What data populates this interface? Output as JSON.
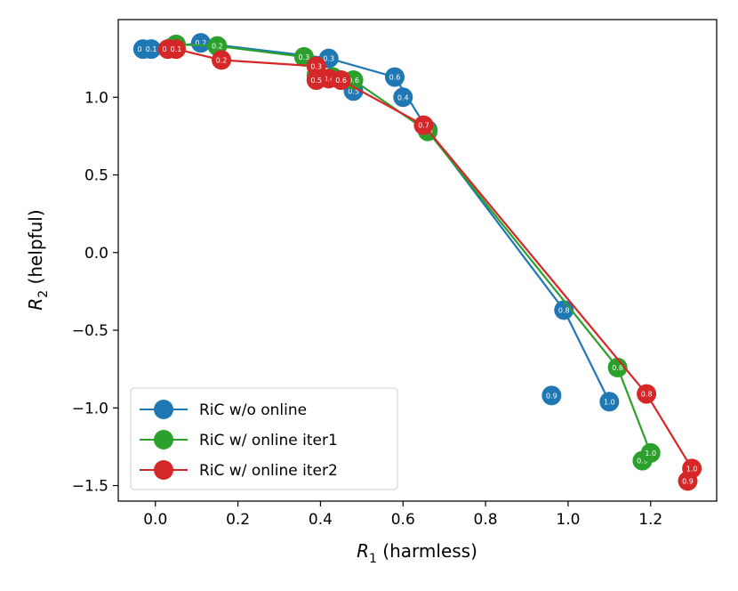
{
  "chart_data": {
    "type": "line",
    "xlabel": {
      "var": "R",
      "sub": "1",
      "rest": " (harmless)"
    },
    "ylabel": {
      "var": "R",
      "sub": "2",
      "rest": " (helpful)"
    },
    "xlim": [
      -0.09,
      1.36
    ],
    "ylim": [
      -1.6,
      1.5
    ],
    "xticks": [
      0.0,
      0.2,
      0.4,
      0.6,
      0.8,
      1.0,
      1.2
    ],
    "yticks": [
      -1.5,
      -1.0,
      -0.5,
      0.0,
      0.5,
      1.0
    ],
    "xtick_labels": [
      "0.0",
      "0.2",
      "0.4",
      "0.6",
      "0.8",
      "1.0",
      "1.2"
    ],
    "ytick_labels": [
      "−1.5",
      "−1.0",
      "−0.5",
      "0.0",
      "0.5",
      "1.0"
    ],
    "grid": false,
    "legend_position": "lower-left",
    "series": [
      {
        "name": "RiC w/o online",
        "color": "#1f77b4",
        "line": [
          [
            -0.03,
            1.31
          ],
          [
            -0.01,
            1.31
          ],
          [
            0.11,
            1.35
          ],
          [
            0.36,
            1.27
          ],
          [
            0.42,
            1.25
          ],
          [
            0.58,
            1.13
          ],
          [
            0.66,
            0.79
          ],
          [
            0.99,
            -0.37
          ],
          [
            1.1,
            -0.96
          ]
        ],
        "points": [
          {
            "x": -0.03,
            "y": 1.31,
            "label": "0.0"
          },
          {
            "x": -0.01,
            "y": 1.31,
            "label": "0.1"
          },
          {
            "x": 0.11,
            "y": 1.35,
            "label": "0.2"
          },
          {
            "x": 0.42,
            "y": 1.25,
            "label": "0.3"
          },
          {
            "x": 0.6,
            "y": 1.0,
            "label": "0.4"
          },
          {
            "x": 0.48,
            "y": 1.04,
            "label": "0.5"
          },
          {
            "x": 0.58,
            "y": 1.13,
            "label": "0.6"
          },
          {
            "x": 0.66,
            "y": 0.79,
            "label": "0.7"
          },
          {
            "x": 0.99,
            "y": -0.37,
            "label": "0.8"
          },
          {
            "x": 0.96,
            "y": -0.92,
            "label": "0.9"
          },
          {
            "x": 1.1,
            "y": -0.96,
            "label": "1.0"
          }
        ]
      },
      {
        "name": "RiC w/ online iter1",
        "color": "#2ca02c",
        "line": [
          [
            0.04,
            1.32
          ],
          [
            0.05,
            1.34
          ],
          [
            0.15,
            1.33
          ],
          [
            0.36,
            1.26
          ],
          [
            0.43,
            1.13
          ],
          [
            0.48,
            1.11
          ],
          [
            0.66,
            0.78
          ],
          [
            1.12,
            -0.74
          ],
          [
            1.2,
            -1.29
          ]
        ],
        "points": [
          {
            "x": 0.04,
            "y": 1.32,
            "label": "0.0"
          },
          {
            "x": 0.05,
            "y": 1.34,
            "label": "0.1"
          },
          {
            "x": 0.15,
            "y": 1.33,
            "label": "0.2"
          },
          {
            "x": 0.36,
            "y": 1.26,
            "label": "0.3"
          },
          {
            "x": 0.43,
            "y": 1.13,
            "label": "0.4"
          },
          {
            "x": 0.39,
            "y": 1.14,
            "label": "0.5"
          },
          {
            "x": 0.48,
            "y": 1.11,
            "label": "0.6"
          },
          {
            "x": 0.66,
            "y": 0.78,
            "label": "0.7"
          },
          {
            "x": 1.12,
            "y": -0.74,
            "label": "0.8"
          },
          {
            "x": 1.18,
            "y": -1.34,
            "label": "0.9"
          },
          {
            "x": 1.2,
            "y": -1.29,
            "label": "1.0"
          }
        ]
      },
      {
        "name": "RiC w/ online iter2",
        "color": "#d62728",
        "line": [
          [
            0.03,
            1.31
          ],
          [
            0.05,
            1.31
          ],
          [
            0.16,
            1.24
          ],
          [
            0.39,
            1.2
          ],
          [
            0.39,
            1.11
          ],
          [
            0.45,
            1.11
          ],
          [
            0.65,
            0.82
          ],
          [
            1.19,
            -0.91
          ],
          [
            1.3,
            -1.39
          ]
        ],
        "points": [
          {
            "x": 0.03,
            "y": 1.31,
            "label": "0.0"
          },
          {
            "x": 0.05,
            "y": 1.31,
            "label": "0.1"
          },
          {
            "x": 0.16,
            "y": 1.24,
            "label": "0.2"
          },
          {
            "x": 0.39,
            "y": 1.2,
            "label": "0.3"
          },
          {
            "x": 0.42,
            "y": 1.12,
            "label": "0.4"
          },
          {
            "x": 0.39,
            "y": 1.11,
            "label": "0.5"
          },
          {
            "x": 0.45,
            "y": 1.11,
            "label": "0.6"
          },
          {
            "x": 0.65,
            "y": 0.82,
            "label": "0.7"
          },
          {
            "x": 1.19,
            "y": -0.91,
            "label": "0.8"
          },
          {
            "x": 1.29,
            "y": -1.47,
            "label": "0.9"
          },
          {
            "x": 1.3,
            "y": -1.39,
            "label": "1.0"
          }
        ]
      }
    ]
  }
}
